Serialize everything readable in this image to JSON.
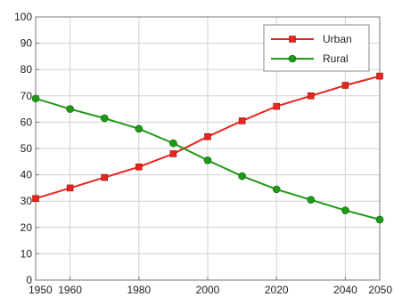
{
  "chart_data": {
    "type": "line",
    "title": "",
    "xlabel": "",
    "ylabel": "",
    "x": [
      1950,
      1960,
      1970,
      1980,
      1990,
      2000,
      2010,
      2020,
      2030,
      2040,
      2050
    ],
    "x_ticks": [
      "1950",
      "1960",
      "1980",
      "2000",
      "2020",
      "2040",
      "2050"
    ],
    "y_ticks": [
      "0",
      "10",
      "20",
      "30",
      "40",
      "50",
      "60",
      "70",
      "80",
      "90",
      "100"
    ],
    "xlim": [
      1950,
      2050
    ],
    "ylim": [
      0,
      100
    ],
    "grid": true,
    "legend_position": "top-right",
    "series": [
      {
        "name": "Urban",
        "color": "#e8251f",
        "marker": "square",
        "values": [
          31,
          35,
          39,
          43,
          48,
          54.5,
          60.5,
          66,
          70,
          74,
          77.5
        ]
      },
      {
        "name": "Rural",
        "color": "#1e9a17",
        "marker": "circle",
        "values": [
          69,
          65,
          61.5,
          57.5,
          52,
          45.5,
          39.5,
          34.5,
          30.5,
          26.5,
          23
        ]
      }
    ]
  }
}
